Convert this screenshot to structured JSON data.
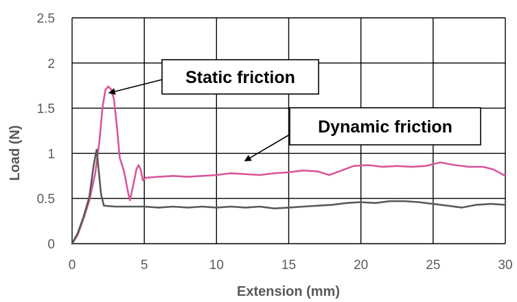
{
  "chart_data": {
    "type": "line",
    "xlabel": "Extension (mm)",
    "ylabel": "Load (N)",
    "xlim": [
      0,
      30
    ],
    "ylim": [
      0,
      2.5
    ],
    "x_ticks": [
      "0",
      "5",
      "10",
      "15",
      "20",
      "25",
      "30"
    ],
    "y_ticks": [
      "0",
      "0.5",
      "1",
      "1.5",
      "2",
      "2.5"
    ],
    "grid": true,
    "legend": "none",
    "series": [
      {
        "color": "#d9559b",
        "points": [
          [
            0,
            0
          ],
          [
            0.4,
            0.1
          ],
          [
            0.8,
            0.28
          ],
          [
            1.2,
            0.48
          ],
          [
            1.6,
            0.78
          ],
          [
            1.9,
            1.15
          ],
          [
            2.1,
            1.5
          ],
          [
            2.3,
            1.7
          ],
          [
            2.5,
            1.74
          ],
          [
            2.7,
            1.71
          ],
          [
            2.9,
            1.6
          ],
          [
            3.1,
            1.3
          ],
          [
            3.3,
            0.95
          ],
          [
            3.6,
            0.8
          ],
          [
            3.9,
            0.55
          ],
          [
            4.0,
            0.48
          ],
          [
            4.2,
            0.62
          ],
          [
            4.45,
            0.82
          ],
          [
            4.6,
            0.87
          ],
          [
            4.75,
            0.82
          ],
          [
            4.9,
            0.7
          ],
          [
            5.1,
            0.73
          ],
          [
            6,
            0.74
          ],
          [
            7,
            0.75
          ],
          [
            8,
            0.74
          ],
          [
            9,
            0.75
          ],
          [
            10,
            0.76
          ],
          [
            11,
            0.78
          ],
          [
            12,
            0.77
          ],
          [
            13,
            0.76
          ],
          [
            14,
            0.78
          ],
          [
            15,
            0.79
          ],
          [
            16,
            0.81
          ],
          [
            17,
            0.8
          ],
          [
            17.8,
            0.76
          ],
          [
            18.5,
            0.8
          ],
          [
            19.5,
            0.86
          ],
          [
            20.5,
            0.87
          ],
          [
            21.5,
            0.85
          ],
          [
            22.5,
            0.86
          ],
          [
            23.5,
            0.85
          ],
          [
            24.5,
            0.86
          ],
          [
            25.5,
            0.9
          ],
          [
            26.5,
            0.87
          ],
          [
            27.5,
            0.85
          ],
          [
            28.5,
            0.85
          ],
          [
            29.2,
            0.82
          ],
          [
            30,
            0.75
          ]
        ]
      },
      {
        "color": "#595959",
        "points": [
          [
            0,
            0
          ],
          [
            0.4,
            0.12
          ],
          [
            0.8,
            0.3
          ],
          [
            1.2,
            0.52
          ],
          [
            1.5,
            0.88
          ],
          [
            1.7,
            1.04
          ],
          [
            1.85,
            0.8
          ],
          [
            2.0,
            0.55
          ],
          [
            2.2,
            0.42
          ],
          [
            3,
            0.41
          ],
          [
            4,
            0.41
          ],
          [
            5,
            0.41
          ],
          [
            6,
            0.4
          ],
          [
            7,
            0.41
          ],
          [
            8,
            0.4
          ],
          [
            9,
            0.41
          ],
          [
            10,
            0.4
          ],
          [
            11,
            0.41
          ],
          [
            12,
            0.4
          ],
          [
            13,
            0.41
          ],
          [
            14,
            0.39
          ],
          [
            15,
            0.4
          ],
          [
            16,
            0.41
          ],
          [
            17,
            0.42
          ],
          [
            18,
            0.43
          ],
          [
            19,
            0.45
          ],
          [
            20,
            0.46
          ],
          [
            21,
            0.45
          ],
          [
            22,
            0.47
          ],
          [
            23,
            0.47
          ],
          [
            24,
            0.46
          ],
          [
            25,
            0.44
          ],
          [
            26,
            0.42
          ],
          [
            27,
            0.4
          ],
          [
            28,
            0.43
          ],
          [
            29,
            0.44
          ],
          [
            30,
            0.43
          ]
        ]
      }
    ],
    "annotations": [
      {
        "text": "Static friction",
        "arrow_to": [
          2.6,
          1.67
        ]
      },
      {
        "text": "Dynamic friction",
        "arrow_to": [
          12,
          0.92
        ]
      }
    ]
  }
}
